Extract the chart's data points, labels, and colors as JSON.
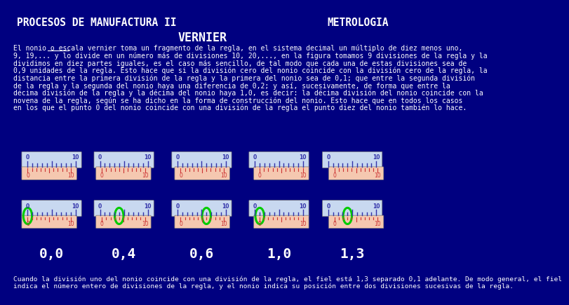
{
  "bg_color": "#000080",
  "header_left": "PROCESOS DE MANUFACTURA II",
  "header_right": "METROLOGIA",
  "title": "VERNIER",
  "header_color": "#ffffff",
  "title_color": "#ffffff",
  "body_color": "#ffffff",
  "footer_color": "#ffffff",
  "labels": [
    "0,0",
    "0,4",
    "0,6",
    "1,0",
    "1,3"
  ],
  "label_color": "#ffffff",
  "ruler_top_color": "#c8d8f0",
  "ruler_bottom_color": "#f5c8b0",
  "tick_top_color": "#3333aa",
  "tick_bottom_color": "#cc3333",
  "circle_color": "#00cc00",
  "offsets": [
    0,
    4,
    6,
    10,
    13
  ],
  "body_lines": [
    "El nonio o escala vernier toma un fragmento de la regla, en el sistema decimal un múltiplo de diez menos uno,",
    "9, 19,... y lo divide en un número más de divisiones 10, 20,..., en la figura tomamos 9 divisiones de la regla y la",
    "dividimos en diez partes iguales, es el caso más sencillo, de tal modo que cada una de estas divisiones sea de",
    "0,9 unidades de la regla. Esto hace que si la división cero del nonio coincide con la división cero de la regla, la",
    "distancia entre la primera división de la regla y la primera del nonio sea de 0,1; que entre la segunda división",
    "de la regla y la segunda del nonio haya una diferencia de 0,2; y así, sucesivamente, de forma que entre la",
    "décima división de la regla y la décima del nonio haya 1,0, es decir: la décima división del nonio coincide con la",
    "novena de la regla, según se ha dicho en la forma de construcción del nonio. Esto hace que en todos los casos",
    "en los que el punto 0 del nonio coincide con una división de la regla el punto diez del nonio también lo hace."
  ],
  "footer_lines": [
    "Cuando la división uno del nonio coincide con una división de la regla, el fiel está 1,3 separado 0,1 adelante. De modo general, el fiel",
    "indica el número entero de divisiones de la regla, y el nonio indica su posición entre dos divisiones sucesivas de la regla."
  ]
}
